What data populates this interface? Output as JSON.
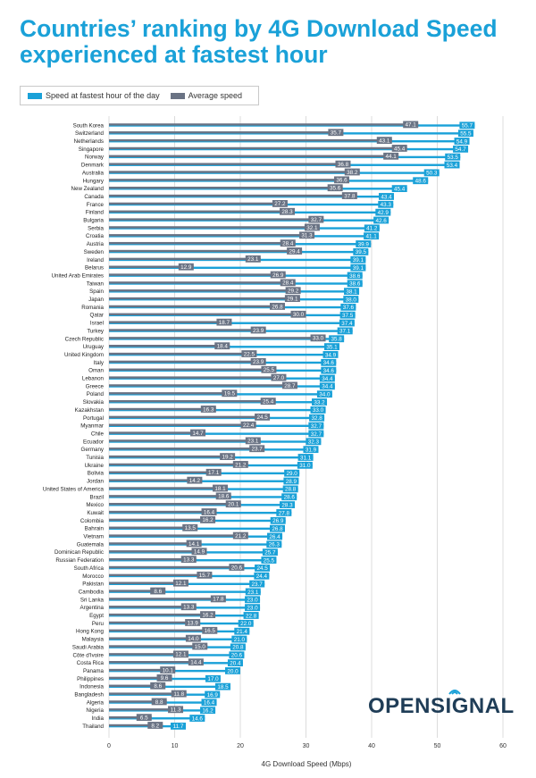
{
  "chart_data": {
    "type": "bar",
    "title": "Countries’ ranking by 4G Download Speed experienced at fastest hour",
    "xlabel": "4G Download Speed (Mbps)",
    "ylabel": "",
    "xlim": [
      0,
      60
    ],
    "xticks": [
      "0",
      "10",
      "20",
      "30",
      "40",
      "50",
      "60"
    ],
    "orientation": "horizontal",
    "grid": "vertical",
    "legend_position": "top-left",
    "categories": [
      "South Korea",
      "Switzerland",
      "Netherlands",
      "Singapore",
      "Norway",
      "Denmark",
      "Australia",
      "Hungary",
      "New Zealand",
      "Canada",
      "France",
      "Finland",
      "Bulgaria",
      "Serbia",
      "Croatia",
      "Austria",
      "Sweden",
      "Ireland",
      "Belarus",
      "United Arab Emirates",
      "Taiwan",
      "Spain",
      "Japan",
      "Romania",
      "Qatar",
      "Israel",
      "Turkey",
      "Czech Republic",
      "Uruguay",
      "United Kingdom",
      "Italy",
      "Oman",
      "Lebanon",
      "Greece",
      "Poland",
      "Slovakia",
      "Kazakhstan",
      "Portugal",
      "Myanmar",
      "Chile",
      "Ecuador",
      "Germany",
      "Tunisia",
      "Ukraine",
      "Bolivia",
      "Jordan",
      "United States of America",
      "Brazil",
      "Mexico",
      "Kuwait",
      "Colombia",
      "Bahrain",
      "Vietnam",
      "Guatemala",
      "Dominican Republic",
      "Russian Federation",
      "South Africa",
      "Morocco",
      "Pakistan",
      "Cambodia",
      "Sri Lanka",
      "Argentina",
      "Egypt",
      "Peru",
      "Hong Kong",
      "Malaysia",
      "Saudi Arabia",
      "Côte d'Ivoire",
      "Costa Rica",
      "Panama",
      "Philippines",
      "Indonesia",
      "Bangladesh",
      "Algeria",
      "Nigeria",
      "India",
      "Thailand"
    ],
    "series": [
      {
        "name": "Speed at fastest hour of the day",
        "color": "#1aa1d8",
        "values": [
          "55.7",
          "55.5",
          "54.9",
          "54.7",
          "53.5",
          "53.4",
          "50.3",
          "48.6",
          "45.4",
          "43.4",
          "43.3",
          "42.9",
          "42.6",
          "41.2",
          "41.1",
          "39.9",
          "39.5",
          "39.1",
          "39.1",
          "38.6",
          "38.6",
          "38.1",
          "38.0",
          "37.6",
          "37.5",
          "37.4",
          "37.1",
          "35.8",
          "35.1",
          "34.9",
          "34.6",
          "34.6",
          "34.4",
          "34.4",
          "34.0",
          "33.2",
          "33.0",
          "32.8",
          "32.7",
          "32.7",
          "32.3",
          "31.9",
          "31.1",
          "31.0",
          "29.0",
          "28.9",
          "28.8",
          "28.6",
          "28.3",
          "27.8",
          "26.9",
          "26.8",
          "26.4",
          "26.3",
          "25.7",
          "25.5",
          "24.5",
          "24.4",
          "23.7",
          "23.1",
          "23.0",
          "23.0",
          "22.8",
          "22.0",
          "21.4",
          "21.0",
          "20.8",
          "20.6",
          "20.4",
          "20.0",
          "17.0",
          "18.5",
          "16.9",
          "16.4",
          "16.2",
          "14.6",
          "11.7"
        ]
      },
      {
        "name": "Average speed",
        "color": "#6a7384",
        "values": [
          "47.1",
          "35.7",
          "43.1",
          "45.4",
          "44.1",
          "36.8",
          "38.2",
          "36.6",
          "35.6",
          "37.8",
          "27.2",
          "28.3",
          "32.7",
          "32.1",
          "31.3",
          "28.4",
          "29.4",
          "23.1",
          "12.9",
          "26.9",
          "28.4",
          "29.2",
          "29.1",
          "26.8",
          "30.0",
          "18.7",
          "23.9",
          "33.0",
          "18.4",
          "22.5",
          "23.9",
          "25.5",
          "27.0",
          "28.7",
          "19.5",
          "25.4",
          "16.3",
          "24.5",
          "22.4",
          "14.7",
          "23.1",
          "23.7",
          "19.2",
          "21.2",
          "17.1",
          "14.2",
          "18.1",
          "18.6",
          "20.1",
          "16.4",
          "16.2",
          "13.5",
          "21.2",
          "14.1",
          "14.9",
          "13.3",
          "20.6",
          "15.7",
          "12.1",
          "8.6",
          "17.8",
          "13.3",
          "16.2",
          "13.9",
          "16.5",
          "14.0",
          "15.0",
          "12.1",
          "14.4",
          "10.1",
          "9.6",
          "8.6",
          "11.8",
          "8.8",
          "11.3",
          "6.5",
          "8.2"
        ]
      }
    ]
  },
  "logo": {
    "text": "OPENSIGNAL"
  }
}
